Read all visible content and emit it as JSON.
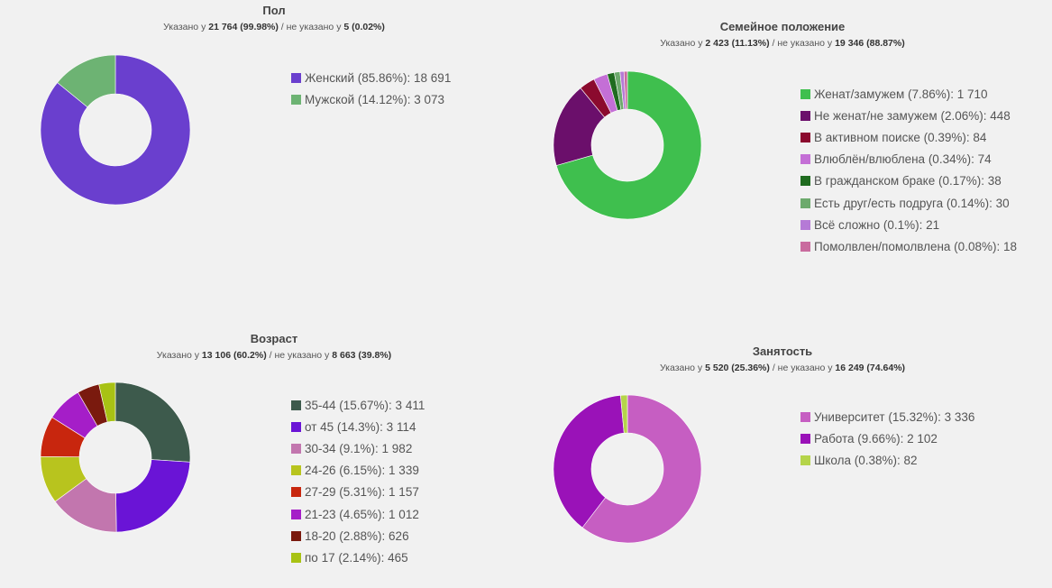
{
  "chart_data": [
    {
      "type": "pie",
      "id": "gender",
      "title": "Пол",
      "subtitle": {
        "prefix": "Указано у ",
        "specified": "21 764 (99.98%)",
        "middle": " / не указано у ",
        "unspecified": "5 (0.02%)"
      },
      "slices": [
        {
          "label": "Женский (85.86%): 18 691",
          "value": 18691,
          "color": "#6a3fce"
        },
        {
          "label": "Мужской (14.12%): 3 073",
          "value": 3073,
          "color": "#6db373"
        }
      ]
    },
    {
      "type": "pie",
      "id": "marital",
      "title": "Семейное положение",
      "subtitle": {
        "prefix": "Указано у ",
        "specified": "2 423 (11.13%)",
        "middle": " / не указано у ",
        "unspecified": "19 346 (88.87%)"
      },
      "slices": [
        {
          "label": "Женат/замужем (7.86%): 1 710",
          "value": 1710,
          "color": "#3fbf4e"
        },
        {
          "label": "Не женат/не замужем (2.06%): 448",
          "value": 448,
          "color": "#6b0f6b"
        },
        {
          "label": "В активном поиске (0.39%): 84",
          "value": 84,
          "color": "#8b0a2e"
        },
        {
          "label": "Влюблён/влюблена (0.34%): 74",
          "value": 74,
          "color": "#c46fd6"
        },
        {
          "label": "В гражданском браке (0.17%): 38",
          "value": 38,
          "color": "#1f6b1f"
        },
        {
          "label": "Есть друг/есть подруга (0.14%): 30",
          "value": 30,
          "color": "#6daa6d"
        },
        {
          "label": "Всё сложно (0.1%): 21",
          "value": 21,
          "color": "#b57ad6"
        },
        {
          "label": "Помолвлен/помолвлена (0.08%): 18",
          "value": 18,
          "color": "#c96b9e"
        }
      ]
    },
    {
      "type": "pie",
      "id": "age",
      "title": "Возраст",
      "subtitle": {
        "prefix": "Указано у ",
        "specified": "13 106 (60.2%)",
        "middle": " / не указано у ",
        "unspecified": "8 663 (39.8%)"
      },
      "slices": [
        {
          "label": "35-44 (15.67%): 3 411",
          "value": 3411,
          "color": "#3d5a4c"
        },
        {
          "label": "от 45 (14.3%): 3 114",
          "value": 3114,
          "color": "#6a14d6"
        },
        {
          "label": "30-34 (9.1%): 1 982",
          "value": 1982,
          "color": "#c276ae"
        },
        {
          "label": "24-26 (6.15%): 1 339",
          "value": 1339,
          "color": "#b8c41e"
        },
        {
          "label": "27-29 (5.31%): 1 157",
          "value": 1157,
          "color": "#c8260e"
        },
        {
          "label": "21-23 (4.65%): 1 012",
          "value": 1012,
          "color": "#a51ec8"
        },
        {
          "label": "18-20 (2.88%): 626",
          "value": 626,
          "color": "#7a1a0e"
        },
        {
          "label": "по 17 (2.14%): 465",
          "value": 465,
          "color": "#a8c214"
        }
      ]
    },
    {
      "type": "pie",
      "id": "occupation",
      "title": "Занятость",
      "subtitle": {
        "prefix": "Указано у ",
        "specified": "5 520 (25.36%)",
        "middle": " / не указано у ",
        "unspecified": "16 249 (74.64%)"
      },
      "slices": [
        {
          "label": "Университет (15.32%): 3 336",
          "value": 3336,
          "color": "#c65ec2"
        },
        {
          "label": "Работа (9.66%): 2 102",
          "value": 2102,
          "color": "#9a12b8"
        },
        {
          "label": "Школа (0.38%): 82",
          "value": 82,
          "color": "#b5d44a"
        }
      ]
    }
  ]
}
